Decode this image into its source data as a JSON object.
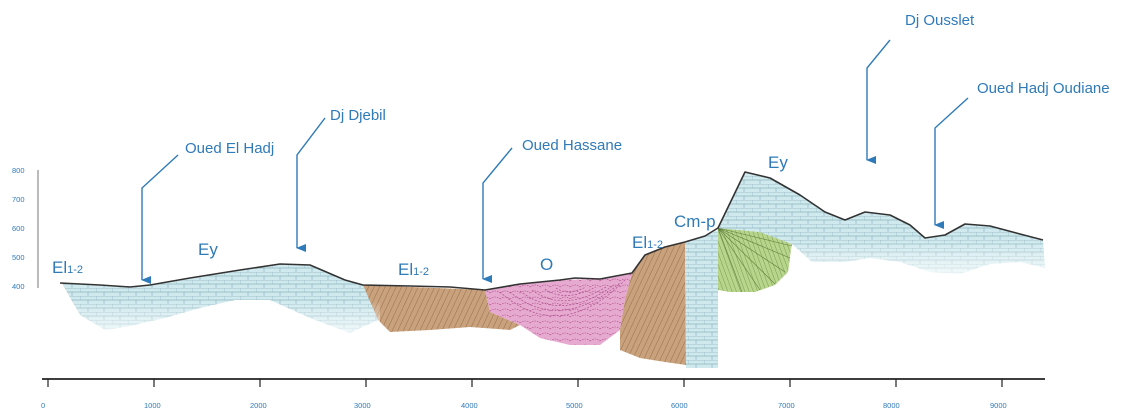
{
  "callouts": [
    {
      "label": "Oued El Hadj"
    },
    {
      "label": "Dj Djebil"
    },
    {
      "label": "Oued Hassane"
    },
    {
      "label": "Dj Ousslet"
    },
    {
      "label": "Oued Hadj Oudiane"
    }
  ],
  "units": [
    {
      "main": "El",
      "sub": "1-2"
    },
    {
      "main": "Ey",
      "sub": ""
    },
    {
      "main": "El",
      "sub": "1-2"
    },
    {
      "main": "O",
      "sub": ""
    },
    {
      "main": "El",
      "sub": "1-2"
    },
    {
      "main": "Cm-p",
      "sub": ""
    },
    {
      "main": "Ey",
      "sub": ""
    }
  ],
  "y_axis": {
    "ticks": [
      "800",
      "700",
      "600",
      "500",
      "400"
    ]
  },
  "x_axis": {
    "ticks": [
      "0",
      "1000",
      "2000",
      "3000",
      "4000",
      "5000",
      "6000",
      "7000",
      "8000",
      "9000"
    ]
  },
  "colors": {
    "label": "#2f7ab8",
    "arrow": "#2f7ab8",
    "limestone": "#cfe9ee",
    "limestone_line": "#8fb6bf",
    "marl_brown": "#c9a17c",
    "marl_line": "#7d5a3a",
    "oligocene_pink": "#e6a9cf",
    "oligocene_line": "#b0508e",
    "green": "#b8d68b",
    "green_line": "#5f7f3c",
    "topography": "#333333"
  },
  "icons": [
    "arrow-down-icon"
  ]
}
